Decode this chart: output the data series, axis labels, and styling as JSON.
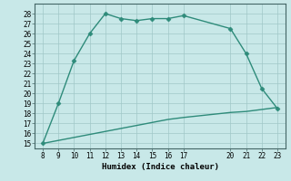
{
  "xlabel": "Humidex (Indice chaleur)",
  "line1_x": [
    8,
    9,
    10,
    11,
    12,
    13,
    14,
    15,
    16,
    17,
    20,
    21,
    22,
    23
  ],
  "line1_y": [
    15,
    19,
    23.3,
    26,
    28,
    27.5,
    27.3,
    27.5,
    27.5,
    27.8,
    26.5,
    24,
    20.5,
    18.5
  ],
  "line2_x": [
    8,
    9,
    10,
    11,
    12,
    13,
    14,
    15,
    16,
    17,
    20,
    21,
    22,
    23
  ],
  "line2_y": [
    15,
    15.3,
    15.6,
    15.9,
    16.2,
    16.5,
    16.8,
    17.1,
    17.4,
    17.6,
    18.1,
    18.2,
    18.4,
    18.6
  ],
  "line_color": "#2e8b7a",
  "bg_color": "#c8e8e8",
  "grid_major_color": "#a0c8c8",
  "grid_minor_color": "#b8d8d8",
  "xlim": [
    7.5,
    23.5
  ],
  "ylim": [
    14.5,
    29
  ],
  "xticks": [
    8,
    9,
    10,
    11,
    12,
    13,
    14,
    15,
    16,
    17,
    20,
    21,
    22,
    23
  ],
  "yticks": [
    15,
    16,
    17,
    18,
    19,
    20,
    21,
    22,
    23,
    24,
    25,
    26,
    27,
    28
  ],
  "marker": "D",
  "markersize": 2.5,
  "linewidth": 1.0
}
